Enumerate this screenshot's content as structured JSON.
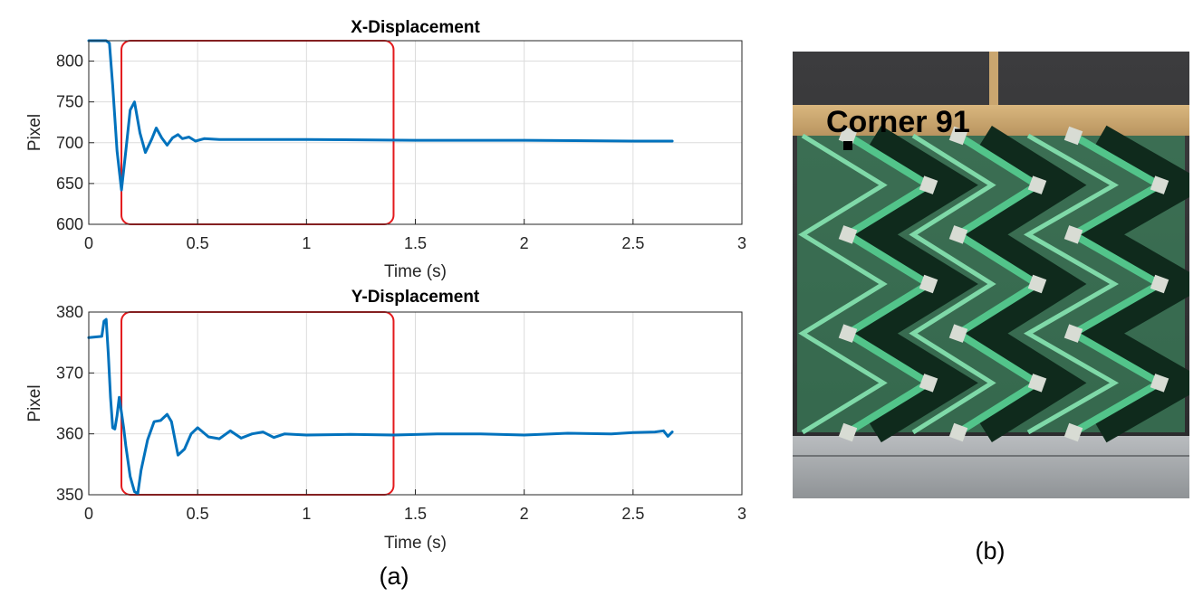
{
  "chart_data": [
    {
      "type": "line",
      "title": "X-Displacement",
      "xlabel": "Time (s)",
      "ylabel": "Pixel",
      "xlim": [
        0,
        3
      ],
      "ylim": [
        600,
        825
      ],
      "xticks": [
        0,
        0.5,
        1,
        1.5,
        2,
        2.5,
        3
      ],
      "xtick_labels": [
        "0",
        "0.5",
        "1",
        "1.5",
        "2",
        "2.5",
        "3"
      ],
      "yticks": [
        600,
        650,
        700,
        750,
        800
      ],
      "ytick_labels": [
        "600",
        "650",
        "700",
        "750",
        "800"
      ],
      "grid": true,
      "highlight": {
        "x": [
          0.15,
          1.4
        ],
        "y": [
          600,
          825
        ]
      },
      "series": [
        {
          "color": "#0072bd",
          "x": [
            0,
            0.08,
            0.095,
            0.11,
            0.13,
            0.15,
            0.17,
            0.19,
            0.21,
            0.235,
            0.26,
            0.29,
            0.31,
            0.335,
            0.36,
            0.385,
            0.41,
            0.43,
            0.46,
            0.49,
            0.53,
            0.6,
            0.8,
            1.0,
            1.5,
            2.0,
            2.5,
            2.68
          ],
          "y": [
            825,
            825,
            822,
            770,
            690,
            642,
            690,
            740,
            750,
            712,
            688,
            705,
            718,
            706,
            697,
            706,
            710,
            705,
            707,
            702,
            705,
            704,
            704,
            704,
            703,
            703,
            702,
            702
          ]
        }
      ]
    },
    {
      "type": "line",
      "title": "Y-Displacement",
      "xlabel": "Time (s)",
      "ylabel": "Pixel",
      "xlim": [
        0,
        3
      ],
      "ylim": [
        350,
        380
      ],
      "xticks": [
        0,
        0.5,
        1,
        1.5,
        2,
        2.5,
        3
      ],
      "xtick_labels": [
        "0",
        "0.5",
        "1",
        "1.5",
        "2",
        "2.5",
        "3"
      ],
      "yticks": [
        350,
        360,
        370,
        380
      ],
      "ytick_labels": [
        "350",
        "360",
        "370",
        "380"
      ],
      "grid": true,
      "highlight": {
        "x": [
          0.15,
          1.4
        ],
        "y": [
          350,
          380
        ]
      },
      "series": [
        {
          "color": "#0072bd",
          "x": [
            0,
            0.06,
            0.07,
            0.08,
            0.09,
            0.1,
            0.11,
            0.12,
            0.13,
            0.14,
            0.15,
            0.16,
            0.17,
            0.19,
            0.21,
            0.225,
            0.24,
            0.27,
            0.3,
            0.33,
            0.36,
            0.38,
            0.41,
            0.44,
            0.47,
            0.5,
            0.55,
            0.6,
            0.65,
            0.7,
            0.75,
            0.8,
            0.85,
            0.9,
            1.0,
            1.2,
            1.4,
            1.6,
            1.8,
            2.0,
            2.2,
            2.4,
            2.5,
            2.6,
            2.64,
            2.66,
            2.68
          ],
          "y": [
            375.8,
            376,
            378.5,
            378.8,
            373,
            366,
            361,
            360.8,
            363,
            366,
            363.5,
            361,
            358,
            353,
            350.5,
            350.2,
            354,
            359,
            362,
            362.2,
            363.2,
            362,
            356.5,
            357.5,
            360,
            361,
            359.5,
            359.2,
            360.5,
            359.3,
            360,
            360.3,
            359.4,
            360,
            359.8,
            359.9,
            359.8,
            360,
            360,
            359.8,
            360.1,
            360,
            360.2,
            360.3,
            360.5,
            359.6,
            360.3
          ]
        }
      ]
    }
  ],
  "captions": {
    "left": "(a)",
    "right": "(b)"
  },
  "photo": {
    "label": "Corner 91"
  }
}
